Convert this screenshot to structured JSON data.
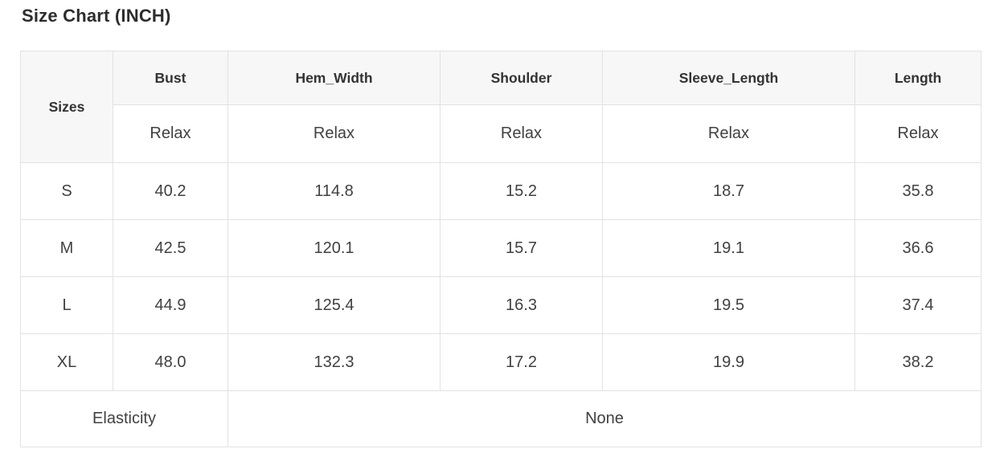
{
  "title": "Size Chart (INCH)",
  "table": {
    "corner_header": "Sizes",
    "measure_headers": [
      "Bust",
      "Hem_Width",
      "Shoulder",
      "Sleeve_Length",
      "Length"
    ],
    "fit_row": [
      "Relax",
      "Relax",
      "Relax",
      "Relax",
      "Relax"
    ],
    "rows": [
      {
        "size": "S",
        "values": [
          "40.2",
          "114.8",
          "15.2",
          "18.7",
          "35.8"
        ]
      },
      {
        "size": "M",
        "values": [
          "42.5",
          "120.1",
          "15.7",
          "19.1",
          "36.6"
        ]
      },
      {
        "size": "L",
        "values": [
          "44.9",
          "125.4",
          "16.3",
          "19.5",
          "37.4"
        ]
      },
      {
        "size": "XL",
        "values": [
          "48.0",
          "132.3",
          "17.2",
          "19.9",
          "38.2"
        ]
      }
    ],
    "footer": {
      "label": "Elasticity",
      "value": "None"
    }
  },
  "colors": {
    "header_background": "#f7f7f7",
    "border": "#e2e2e2",
    "title_text": "#2d2d2d",
    "header_text": "#333333",
    "cell_text": "#414141",
    "page_background": "#ffffff"
  }
}
